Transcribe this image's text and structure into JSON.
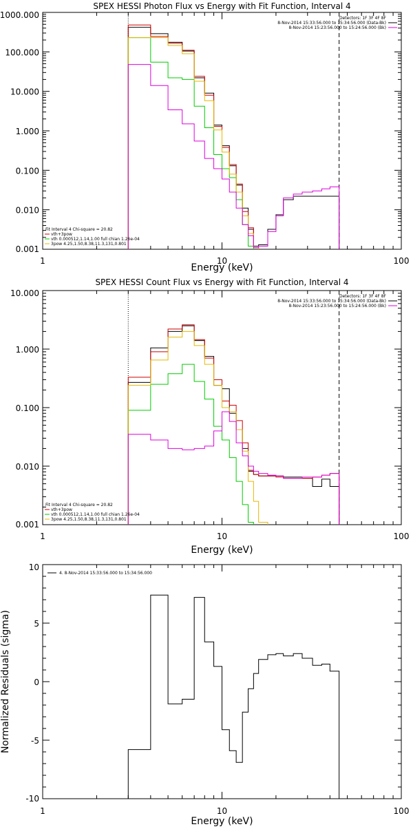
{
  "chart_data": [
    {
      "type": "line",
      "title": "SPEX HESSI Photon Flux vs Energy with Fit Function, Interval 4",
      "xlabel": "Energy (keV)",
      "ylabel": "",
      "xscale": "log",
      "yscale": "log",
      "xlim": [
        1,
        100
      ],
      "ylim": [
        0.001,
        1000
      ],
      "xtick_labels": [
        "1",
        "10",
        "100"
      ],
      "ytick_labels": [
        "0.001",
        "0.010",
        "0.100",
        "1.000",
        "10.000",
        "100.000",
        "1000.000"
      ],
      "ytick_values": [
        0.001,
        0.01,
        0.1,
        1,
        10,
        100,
        1000
      ],
      "legend_top": {
        "position": "top-right",
        "lines": [
          {
            "text": "Detectors: 1F 3F 4F 8F",
            "color": ""
          },
          {
            "text": "8-Nov-2014 15:33:56.000 to 15:34:56.000 (Data-Bk)",
            "color": "#000000"
          },
          {
            "text": "8-Nov-2014 15:23:56.000 to 15:24:56.000 (Bk)",
            "color": "#dd00dd"
          }
        ]
      },
      "legend_bottom": {
        "position": "bottom-left",
        "lines": [
          {
            "text": "Fit Interval 4   Chi-square = 20.82",
            "color": ""
          },
          {
            "text": "vth+3pow",
            "color": "#cc0000"
          },
          {
            "text": "vth 0.000512,1.14,1.00   full chian 1.26e-04",
            "color": "#00cc00"
          },
          {
            "text": "3pow 4.25,1.50,8.38,11.3,131,0.801",
            "color": "#e6b800"
          }
        ]
      },
      "vlines": [
        {
          "x": 3.0,
          "style": "dotted",
          "color": "#000000"
        },
        {
          "x": 45.0,
          "style": "dashed",
          "color": "#000000"
        }
      ],
      "bin_edges": [
        3.0,
        4.0,
        5.0,
        6.0,
        7.0,
        8.0,
        9.0,
        10.0,
        11.0,
        12.0,
        13.0,
        14.0,
        15.0,
        16.0,
        18.0,
        20.0,
        22.0,
        25.0,
        28.0,
        32.0,
        36.0,
        40.0,
        45.0
      ],
      "series": [
        {
          "name": "8-Nov-2014 15:33:56.000 to 15:34:56.000 (Data-Bk)",
          "color": "#000000",
          "values": [
            420,
            290,
            175,
            105,
            22,
            9,
            1.4,
            0.42,
            0.13,
            0.042,
            0.011,
            0.0032,
            0.0012,
            0.0013,
            0.0032,
            0.0075,
            0.018,
            0.022,
            0.022,
            0.022,
            0.022,
            0.022
          ]
        },
        {
          "name": "vth+3pow",
          "color": "#cc0000",
          "values": [
            480,
            245,
            165,
            110,
            24,
            8,
            1.3,
            0.38,
            0.14,
            0.045,
            0.009,
            0.0035,
            0.0011,
            null,
            null,
            null,
            null,
            null,
            null,
            null,
            null,
            null
          ]
        },
        {
          "name": "vth",
          "color": "#00cc00",
          "values": [
            230,
            55,
            22,
            20,
            4.2,
            1.2,
            0.25,
            0.11,
            0.065,
            0.018,
            0.0042,
            0.0012,
            null,
            null,
            null,
            null,
            null,
            null,
            null,
            null,
            null,
            null
          ]
        },
        {
          "name": "3pow",
          "color": "#e6b800",
          "values": [
            230,
            230,
            145,
            90,
            18,
            5.8,
            1.05,
            0.29,
            0.08,
            0.028,
            0.007,
            0.0025,
            0.0011,
            null,
            null,
            null,
            null,
            null,
            null,
            null,
            null,
            null
          ]
        },
        {
          "name": "8-Nov-2014 15:23:56.000 to 15:24:56.000 (Bk)",
          "color": "#dd00dd",
          "values": [
            48,
            14,
            3.4,
            1.5,
            0.55,
            0.2,
            0.11,
            0.06,
            0.028,
            0.011,
            0.0042,
            0.0022,
            0.0011,
            0.0012,
            0.0028,
            0.007,
            0.02,
            0.025,
            0.028,
            0.03,
            0.034,
            0.038
          ]
        }
      ]
    },
    {
      "type": "line",
      "title": "SPEX HESSI Count Flux vs Energy with Fit Function, Interval 4",
      "xlabel": "Energy (keV)",
      "ylabel": "",
      "xscale": "log",
      "yscale": "log",
      "xlim": [
        1,
        100
      ],
      "ylim": [
        0.001,
        10
      ],
      "xtick_labels": [
        "1",
        "10",
        "100"
      ],
      "ytick_labels": [
        "0.001",
        "0.010",
        "0.100",
        "1.000",
        "10.000"
      ],
      "ytick_values": [
        0.001,
        0.01,
        0.1,
        1,
        10
      ],
      "legend_top": {
        "position": "top-right",
        "lines": [
          {
            "text": "Detectors: 1F 3F 4F 8F",
            "color": ""
          },
          {
            "text": "8-Nov-2014 15:33:56.000 to 15:34:56.000 (Data-Bk)",
            "color": "#000000"
          },
          {
            "text": "8-Nov-2014 15:23:56.000 to 15:24:56.000 (Bk)",
            "color": "#dd00dd"
          }
        ]
      },
      "legend_bottom": {
        "position": "bottom-left",
        "lines": [
          {
            "text": "Fit Interval 4   Chi-square = 20.82",
            "color": ""
          },
          {
            "text": "vth+3pow",
            "color": "#cc0000"
          },
          {
            "text": "vth 0.000512,1.14,1.00   full chian 1.26e-04",
            "color": "#00cc00"
          },
          {
            "text": "3pow 4.25,1.50,8.38,11.3,131,0.801",
            "color": "#e6b800"
          }
        ]
      },
      "vlines": [
        {
          "x": 3.0,
          "style": "dotted",
          "color": "#000000"
        },
        {
          "x": 45.0,
          "style": "dashed",
          "color": "#000000"
        }
      ],
      "bin_edges": [
        3.0,
        4.0,
        5.0,
        6.0,
        7.0,
        8.0,
        9.0,
        10.0,
        11.0,
        12.0,
        13.0,
        14.0,
        15.0,
        16.0,
        18.0,
        20.0,
        22.0,
        25.0,
        28.0,
        32.0,
        36.0,
        40.0,
        45.0
      ],
      "series": [
        {
          "name": "8-Nov-2014 15:33:56.000 to 15:34:56.000 (Data-Bk)",
          "color": "#000000",
          "values": [
            0.27,
            1.05,
            2.0,
            2.5,
            1.4,
            0.75,
            0.24,
            0.21,
            0.08,
            0.042,
            0.02,
            0.0082,
            0.0072,
            0.0068,
            0.0068,
            0.0068,
            0.0065,
            0.0065,
            0.0062,
            0.0045,
            0.006,
            0.0045
          ]
        },
        {
          "name": "vth+3pow",
          "color": "#cc0000",
          "values": [
            0.33,
            0.9,
            2.2,
            2.6,
            1.45,
            0.7,
            0.3,
            0.13,
            0.11,
            0.06,
            0.025,
            0.0085,
            0.0072,
            0.0068,
            0.0068,
            0.0065,
            0.0062,
            0.0062,
            0.0062,
            0.0065,
            0.007,
            0.0075
          ]
        },
        {
          "name": "vth",
          "color": "#00cc00",
          "values": [
            0.09,
            0.25,
            0.38,
            0.55,
            0.28,
            0.14,
            0.048,
            0.028,
            0.014,
            0.0055,
            0.0022,
            0.0011,
            null,
            null,
            null,
            null,
            null,
            null,
            null,
            null,
            null,
            null
          ]
        },
        {
          "name": "3pow",
          "color": "#e6b800",
          "values": [
            0.24,
            0.65,
            1.6,
            2.0,
            1.15,
            0.55,
            0.24,
            0.1,
            0.085,
            0.042,
            0.018,
            0.0055,
            0.0025,
            0.0011,
            null,
            null,
            null,
            null,
            null,
            null,
            null,
            null
          ]
        },
        {
          "name": "8-Nov-2014 15:23:56.000 to 15:24:56.000 (Bk)",
          "color": "#dd00dd",
          "values": [
            0.035,
            0.028,
            0.02,
            0.019,
            0.02,
            0.022,
            0.04,
            0.085,
            0.058,
            0.025,
            0.015,
            0.01,
            0.0082,
            0.0075,
            0.007,
            0.0068,
            0.0062,
            0.0062,
            0.0065,
            0.0065,
            0.007,
            0.0075
          ]
        }
      ]
    },
    {
      "type": "line",
      "title": "",
      "xlabel": "Energy (keV)",
      "ylabel": "Normalized Residuals (sigma)",
      "xscale": "log",
      "yscale": "linear",
      "xlim": [
        1,
        100
      ],
      "ylim": [
        -10,
        10
      ],
      "xtick_labels": [
        "1",
        "10",
        "100"
      ],
      "ytick_labels": [
        "-10",
        "-5",
        "0",
        "5",
        "10"
      ],
      "ytick_values": [
        -10,
        -5,
        0,
        5,
        10
      ],
      "legend_top": {
        "position": "top-left",
        "lines": [
          {
            "text": "4.  8-Nov-2014 15:33:56.000 to 15:34:56.000",
            "color": "#000000"
          }
        ]
      },
      "bin_edges": [
        3.0,
        4.0,
        5.0,
        6.0,
        7.0,
        8.0,
        9.0,
        10.0,
        11.0,
        12.0,
        13.0,
        14.0,
        15.0,
        16.0,
        18.0,
        20.0,
        22.0,
        25.0,
        28.0,
        32.0,
        36.0,
        40.0,
        45.0
      ],
      "series": [
        {
          "name": "4.  8-Nov-2014 15:33:56.000 to 15:34:56.000",
          "color": "#000000",
          "values": [
            -5.8,
            7.4,
            -1.9,
            -1.5,
            7.2,
            3.4,
            1.3,
            -4.1,
            -5.9,
            -6.9,
            -2.6,
            -0.6,
            0.7,
            1.9,
            2.3,
            2.4,
            2.2,
            2.4,
            2.0,
            1.4,
            1.5,
            0.9
          ]
        }
      ]
    }
  ]
}
